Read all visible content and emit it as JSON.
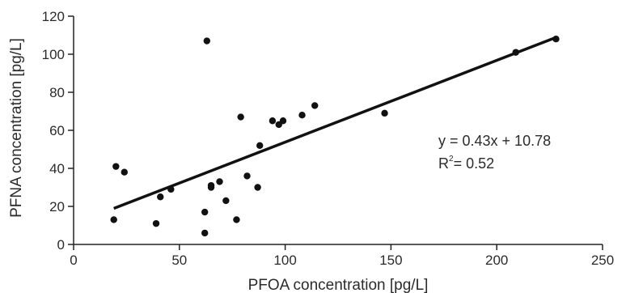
{
  "chart_data": {
    "type": "scatter",
    "xlabel": "PFOA concentration [pg/L]",
    "ylabel": "PFNA concentration [pg/L]",
    "xlim": [
      0,
      250
    ],
    "ylim": [
      0,
      120
    ],
    "x_ticks": [
      "0",
      "50",
      "100",
      "150",
      "200",
      "250"
    ],
    "y_ticks": [
      "0",
      "20",
      "40",
      "60",
      "80",
      "100",
      "120"
    ],
    "grid": false,
    "points": [
      {
        "x": 19,
        "y": 13
      },
      {
        "x": 20,
        "y": 41
      },
      {
        "x": 24,
        "y": 38
      },
      {
        "x": 39,
        "y": 11
      },
      {
        "x": 41,
        "y": 25
      },
      {
        "x": 46,
        "y": 29
      },
      {
        "x": 62,
        "y": 17
      },
      {
        "x": 62,
        "y": 6
      },
      {
        "x": 63,
        "y": 107
      },
      {
        "x": 65,
        "y": 30
      },
      {
        "x": 65,
        "y": 31
      },
      {
        "x": 69,
        "y": 33
      },
      {
        "x": 72,
        "y": 23
      },
      {
        "x": 77,
        "y": 13
      },
      {
        "x": 79,
        "y": 67
      },
      {
        "x": 82,
        "y": 36
      },
      {
        "x": 87,
        "y": 30
      },
      {
        "x": 88,
        "y": 52
      },
      {
        "x": 94,
        "y": 65
      },
      {
        "x": 97,
        "y": 63
      },
      {
        "x": 99,
        "y": 65
      },
      {
        "x": 108,
        "y": 68
      },
      {
        "x": 114,
        "y": 73
      },
      {
        "x": 147,
        "y": 69
      },
      {
        "x": 209,
        "y": 101
      },
      {
        "x": 228,
        "y": 108
      }
    ],
    "regression": {
      "slope": 0.43,
      "intercept": 10.78,
      "x_range": [
        19,
        228
      ],
      "equation": "y = 0.43x + 10.78",
      "r2_base": "R",
      "r2_sup": "2",
      "r2_value": "= 0.52"
    }
  }
}
